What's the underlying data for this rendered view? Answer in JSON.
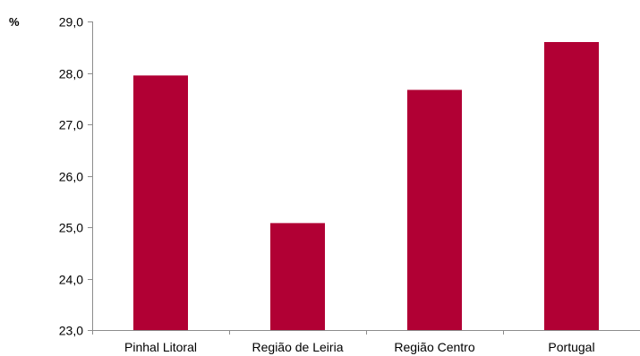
{
  "chart_data": {
    "type": "bar",
    "unit_label": "%",
    "categories": [
      "Pinhal Litoral",
      "Região de Leiria",
      "Região Centro",
      "Portugal"
    ],
    "values": [
      27.95,
      25.08,
      27.67,
      28.6
    ],
    "ylim": [
      23.0,
      29.0
    ],
    "yticks": [
      23.0,
      24.0,
      25.0,
      26.0,
      27.0,
      28.0,
      29.0
    ],
    "ytick_labels": [
      "23,0",
      "24,0",
      "25,0",
      "26,0",
      "27,0",
      "28,0",
      "29,0"
    ],
    "grid": false,
    "legend": "none",
    "bar_color": "#b10034",
    "axis_color": "#8c8c8c"
  }
}
